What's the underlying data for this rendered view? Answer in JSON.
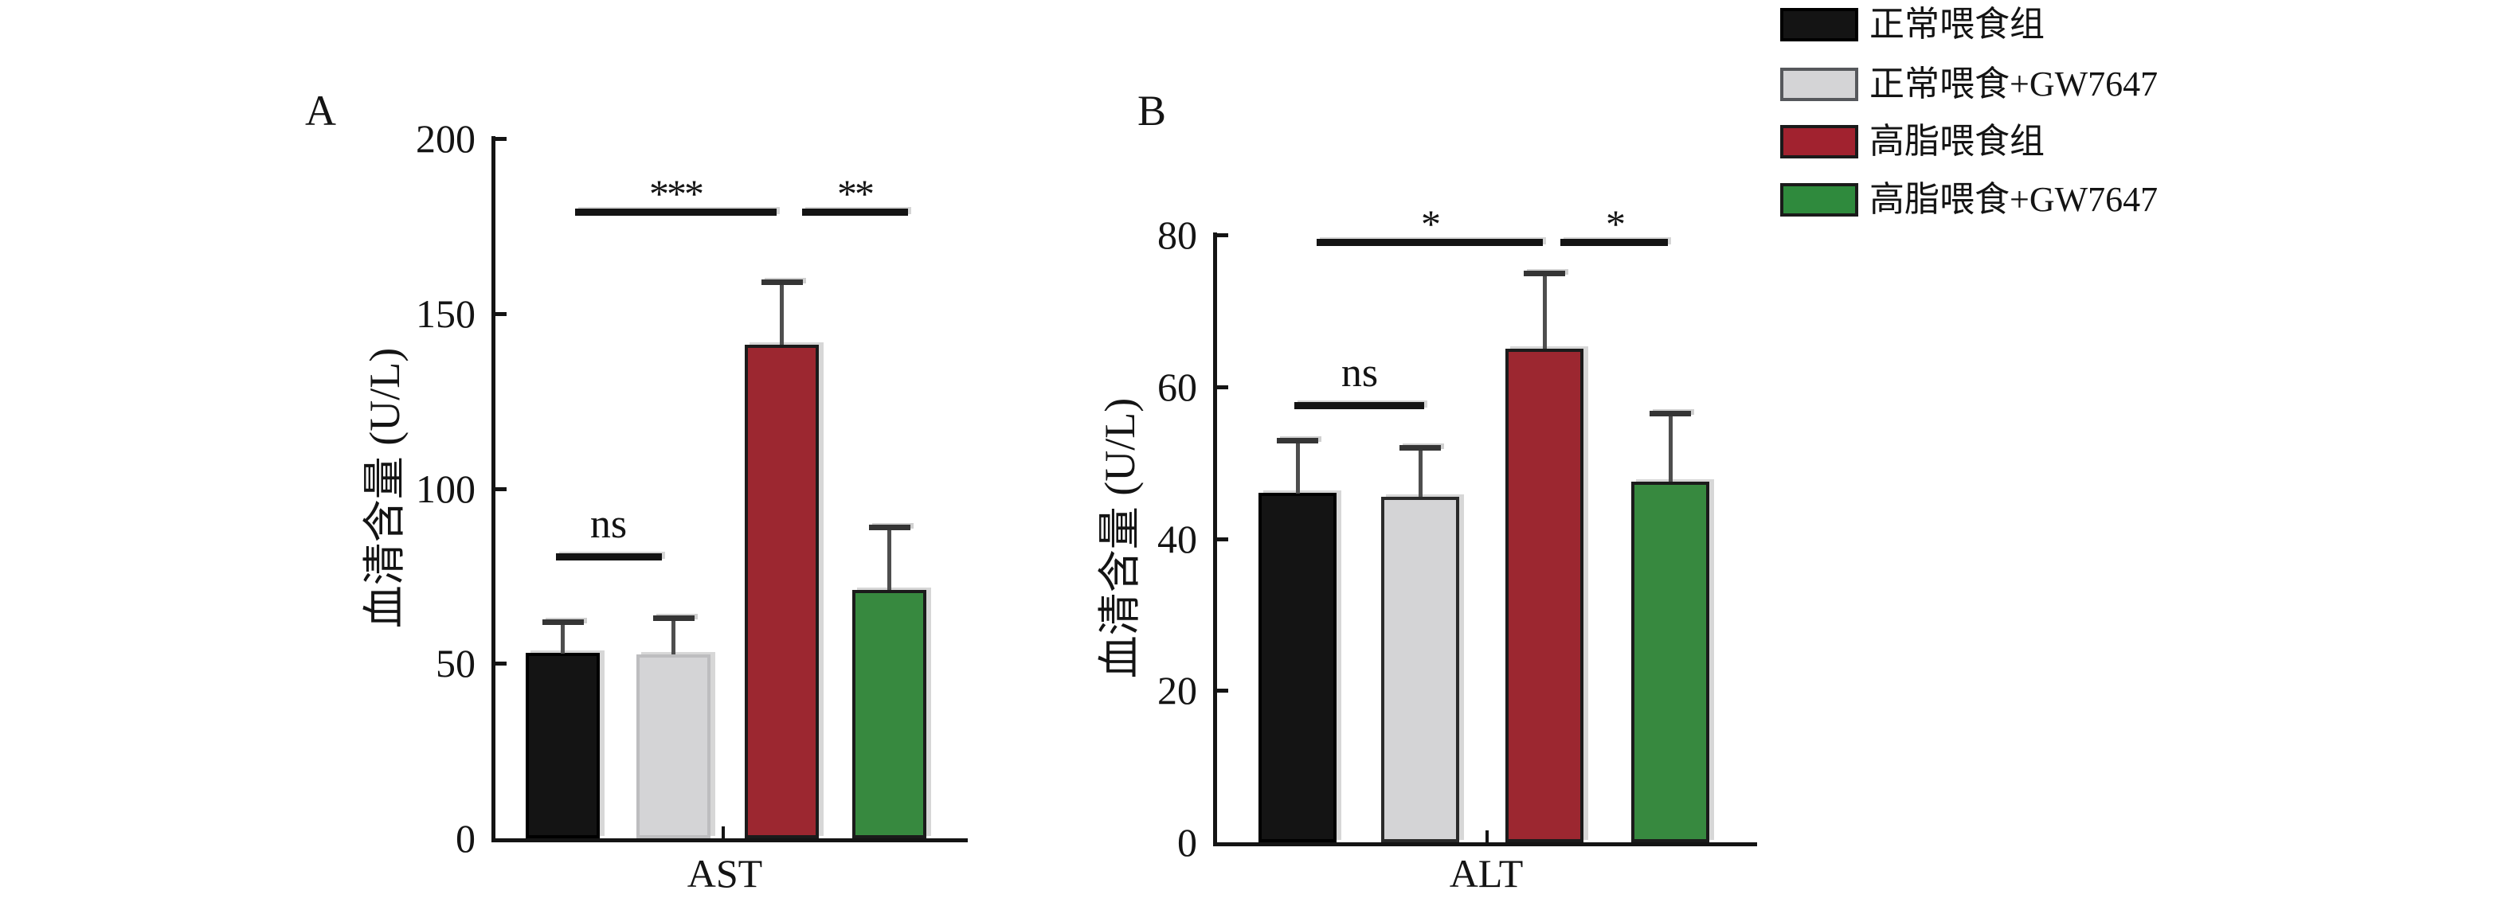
{
  "figure": {
    "description": "Two-panel bar chart of serum AST and ALT levels in four mouse feeding groups",
    "background": "#ffffff",
    "axis_color": "#141414"
  },
  "legend": {
    "items": [
      {
        "label": "正常喂食组",
        "color": "#141414",
        "border": "#000000"
      },
      {
        "label": "正常喂食+GW7647",
        "color": "#d4d4d6",
        "border": "#56585c"
      },
      {
        "label": "高脂喂食组",
        "color": "#a1222f",
        "border": "#1a1a1a"
      },
      {
        "label": "高脂喂食+GW7647",
        "color": "#2f8a3d",
        "border": "#1a1a1a"
      }
    ]
  },
  "chart_data": [
    {
      "type": "bar",
      "panel_label": "A",
      "category": "AST",
      "xlabel": "AST",
      "ylabel": "血清含量 (U/L)",
      "ylim": [
        0,
        200
      ],
      "y_ticks": [
        0,
        50,
        100,
        150,
        200
      ],
      "grid": false,
      "groups": [
        "正常喂食组",
        "正常喂食+GW7647",
        "高脂喂食组",
        "高脂喂食+GW7647"
      ],
      "values": [
        53,
        52.5,
        141,
        71
      ],
      "errors_upper": [
        9,
        10.5,
        18,
        18
      ],
      "bar_colors": [
        "#141414",
        "#d4d4d6",
        "#9c2730",
        "#37893f"
      ],
      "bar_borders": [
        "#000000",
        "#bdbdbf",
        "#1b1b1b",
        "#1b1b1b"
      ],
      "significance": [
        {
          "label": "ns",
          "from": 0,
          "to": 1,
          "at": 81.5
        },
        {
          "label": "***",
          "from": 0,
          "to": 2,
          "at": 180
        },
        {
          "label": "**",
          "from": 2,
          "to": 3,
          "at": 180
        }
      ]
    },
    {
      "type": "bar",
      "panel_label": "B",
      "category": "ALT",
      "xlabel": "ALT",
      "ylabel": "血清含量 (U/L)",
      "ylim": [
        0,
        80
      ],
      "y_ticks": [
        0,
        20,
        40,
        60,
        80
      ],
      "grid": false,
      "groups": [
        "正常喂食组",
        "正常喂食+GW7647",
        "高脂喂食组",
        "高脂喂食+GW7647"
      ],
      "values": [
        46,
        45.5,
        65,
        47.5
      ],
      "errors_upper": [
        7,
        6.5,
        10,
        9
      ],
      "bar_colors": [
        "#141414",
        "#d4d4d6",
        "#9c2730",
        "#37893f"
      ],
      "bar_borders": [
        "#000000",
        "#2a2a2a",
        "#1b1b1b",
        "#1b1b1b"
      ],
      "significance": [
        {
          "label": "ns",
          "from": 0,
          "to": 1,
          "at": 58
        },
        {
          "label": "*",
          "from": 0,
          "to": 2,
          "at": 79.5
        },
        {
          "label": "*",
          "from": 2,
          "to": 3,
          "at": 79.5
        }
      ]
    }
  ]
}
